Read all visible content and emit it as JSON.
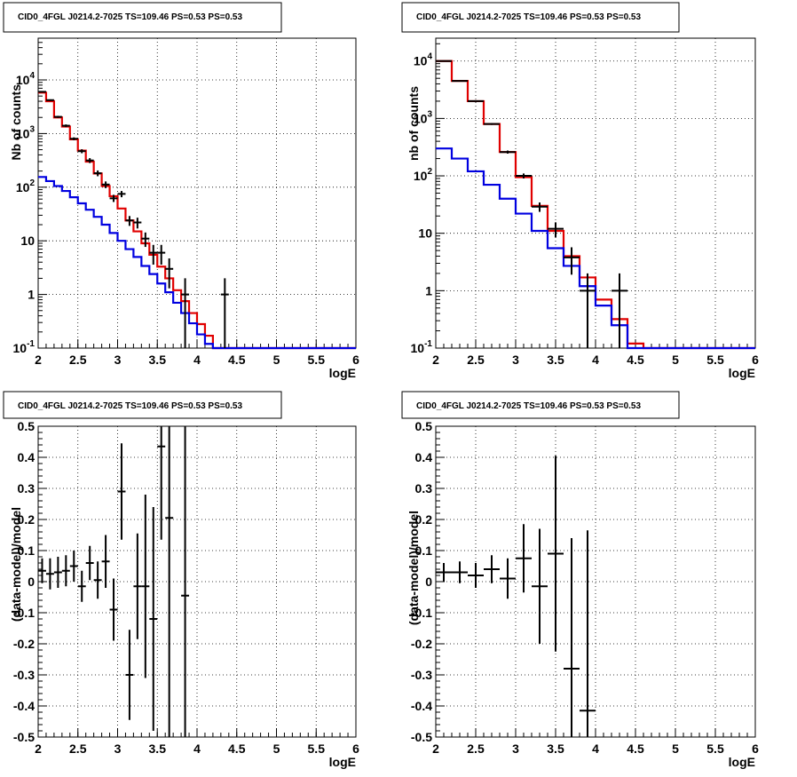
{
  "chart_data": [
    {
      "type": "line",
      "title": "CID0_4FGL J0214.2-7025 TS=109.46 PS=0.53 PS=0.53",
      "xlabel": "logE",
      "ylabel": "Nb of counts",
      "xlim": [
        2,
        6
      ],
      "ylim": [
        0.1,
        60000
      ],
      "yscale": "log",
      "grid": true,
      "x_ticks": [
        "2",
        "2.5",
        "3",
        "3.5",
        "4",
        "4.5",
        "5",
        "5.5",
        "6"
      ],
      "y_ticks": [
        {
          "v": 0.1,
          "base": "10",
          "exp": "-1"
        },
        {
          "v": 1,
          "base": "1",
          "exp": ""
        },
        {
          "v": 10,
          "base": "10",
          "exp": ""
        },
        {
          "v": 100,
          "base": "10",
          "exp": "2"
        },
        {
          "v": 1000,
          "base": "10",
          "exp": "3"
        },
        {
          "v": 10000,
          "base": "10",
          "exp": "4"
        }
      ],
      "bin_edges": [
        2.0,
        2.1,
        2.2,
        2.3,
        2.4,
        2.5,
        2.6,
        2.7,
        2.8,
        2.9,
        3.0,
        3.1,
        3.2,
        3.3,
        3.4,
        3.5,
        3.6,
        3.7,
        3.8,
        3.9,
        4.0,
        4.1,
        4.2,
        4.3,
        4.4,
        4.5,
        4.6,
        4.7,
        4.8,
        4.9,
        5.0,
        5.1,
        5.2,
        5.3,
        5.4,
        5.5,
        5.6,
        5.7,
        5.8,
        5.9,
        6.0
      ],
      "series": [
        {
          "color": "#e00000",
          "values": [
            5800,
            4000,
            2000,
            1350,
            780,
            480,
            300,
            180,
            105,
            68,
            40,
            24,
            15,
            9,
            5.5,
            3.3,
            2.0,
            1.2,
            0.75,
            0.45,
            0.28,
            0.17,
            0.1,
            0.1,
            0.1,
            0.1,
            0.1,
            0.1,
            0.1,
            0.1,
            0.1,
            0.1,
            0.1,
            0.1,
            0.1,
            0.1,
            0.1,
            0.1,
            0.1,
            0.1
          ]
        },
        {
          "color": "#0000e0",
          "values": [
            155,
            130,
            105,
            85,
            65,
            50,
            38,
            28,
            20,
            14,
            10,
            7,
            5,
            3.4,
            2.4,
            1.6,
            1.1,
            0.7,
            0.45,
            0.29,
            0.18,
            0.12,
            0.1,
            0.1,
            0.1,
            0.1,
            0.1,
            0.1,
            0.1,
            0.1,
            0.1,
            0.1,
            0.1,
            0.1,
            0.1,
            0.1,
            0.1,
            0.1,
            0.1,
            0.1
          ]
        }
      ],
      "data_points": [
        {
          "x": 2.05,
          "y": 6000,
          "ylo": 5850,
          "yhi": 6150
        },
        {
          "x": 2.15,
          "y": 4200,
          "ylo": 4070,
          "yhi": 4330
        },
        {
          "x": 2.25,
          "y": 2050,
          "ylo": 1960,
          "yhi": 2140
        },
        {
          "x": 2.35,
          "y": 1400,
          "ylo": 1320,
          "yhi": 1480
        },
        {
          "x": 2.45,
          "y": 800,
          "ylo": 750,
          "yhi": 850
        },
        {
          "x": 2.55,
          "y": 470,
          "ylo": 430,
          "yhi": 510
        },
        {
          "x": 2.65,
          "y": 315,
          "ylo": 282,
          "yhi": 348
        },
        {
          "x": 2.75,
          "y": 182,
          "ylo": 160,
          "yhi": 205
        },
        {
          "x": 2.85,
          "y": 112,
          "ylo": 96,
          "yhi": 128
        },
        {
          "x": 2.95,
          "y": 62,
          "ylo": 53,
          "yhi": 72
        },
        {
          "x": 3.05,
          "y": 75,
          "ylo": 65,
          "yhi": 85
        },
        {
          "x": 3.15,
          "y": 24,
          "ylo": 19,
          "yhi": 29
        },
        {
          "x": 3.25,
          "y": 22,
          "ylo": 17,
          "yhi": 27
        },
        {
          "x": 3.35,
          "y": 11,
          "ylo": 7.7,
          "yhi": 14.3
        },
        {
          "x": 3.45,
          "y": 6,
          "ylo": 3.6,
          "yhi": 8.4
        },
        {
          "x": 3.55,
          "y": 6,
          "ylo": 3.6,
          "yhi": 8.4
        },
        {
          "x": 3.65,
          "y": 3,
          "ylo": 1.3,
          "yhi": 4.7
        },
        {
          "x": 3.85,
          "y": 1,
          "ylo": 0.1,
          "yhi": 2.0
        },
        {
          "x": 4.35,
          "y": 1,
          "ylo": 0.1,
          "yhi": 2.0
        }
      ]
    },
    {
      "type": "line",
      "title": "CID0_4FGL J0214.2-7025 TS=109.46 PS=0.53 PS=0.53",
      "xlabel": "logE",
      "ylabel": "nb of counts",
      "xlim": [
        2,
        6
      ],
      "ylim": [
        0.1,
        25000
      ],
      "yscale": "log",
      "grid": true,
      "x_ticks": [
        "2",
        "2.5",
        "3",
        "3.5",
        "4",
        "4.5",
        "5",
        "5.5",
        "6"
      ],
      "y_ticks": [
        {
          "v": 0.1,
          "base": "10",
          "exp": "-1"
        },
        {
          "v": 1,
          "base": "1",
          "exp": ""
        },
        {
          "v": 10,
          "base": "10",
          "exp": ""
        },
        {
          "v": 100,
          "base": "10",
          "exp": "2"
        },
        {
          "v": 1000,
          "base": "10",
          "exp": "3"
        },
        {
          "v": 10000,
          "base": "10",
          "exp": "4"
        }
      ],
      "bin_edges": [
        2.0,
        2.2,
        2.4,
        2.6,
        2.8,
        3.0,
        3.2,
        3.4,
        3.6,
        3.8,
        4.0,
        4.2,
        4.4,
        4.6,
        4.8,
        5.0,
        5.2,
        5.4,
        5.6,
        5.8,
        6.0
      ],
      "series": [
        {
          "color": "#e00000",
          "values": [
            10000,
            4500,
            2000,
            800,
            260,
            95,
            30,
            11,
            4.0,
            1.7,
            0.7,
            0.32,
            0.12,
            0.1,
            0.1,
            0.1,
            0.1,
            0.1,
            0.1,
            0.1
          ]
        },
        {
          "color": "#0000e0",
          "values": [
            300,
            200,
            120,
            70,
            40,
            22,
            11,
            5.5,
            2.7,
            1.2,
            0.55,
            0.25,
            0.1,
            0.1,
            0.1,
            0.1,
            0.1,
            0.1,
            0.1,
            0.1
          ]
        }
      ],
      "data_points": [
        {
          "x": 2.1,
          "y": 10000,
          "ylo": 9900,
          "yhi": 10100
        },
        {
          "x": 2.3,
          "y": 4500,
          "ylo": 4430,
          "yhi": 4570
        },
        {
          "x": 2.5,
          "y": 2000,
          "ylo": 1955,
          "yhi": 2045
        },
        {
          "x": 2.7,
          "y": 800,
          "ylo": 772,
          "yhi": 828
        },
        {
          "x": 2.9,
          "y": 260,
          "ylo": 244,
          "yhi": 276
        },
        {
          "x": 3.1,
          "y": 100,
          "ylo": 90,
          "yhi": 110
        },
        {
          "x": 3.3,
          "y": 29,
          "ylo": 23.6,
          "yhi": 34.4
        },
        {
          "x": 3.5,
          "y": 12,
          "ylo": 8.5,
          "yhi": 15.5
        },
        {
          "x": 3.7,
          "y": 3.8,
          "ylo": 1.9,
          "yhi": 5.7
        },
        {
          "x": 3.9,
          "y": 1,
          "ylo": 0.1,
          "yhi": 2.0
        },
        {
          "x": 4.3,
          "y": 1,
          "ylo": 0.1,
          "yhi": 2.0
        }
      ]
    },
    {
      "type": "scatter",
      "title": "CID0_4FGL J0214.2-7025 TS=109.46 PS=0.53 PS=0.53",
      "xlabel": "logE",
      "ylabel": "(data-model)/model",
      "xlim": [
        2,
        6
      ],
      "ylim": [
        -0.5,
        0.5
      ],
      "grid": true,
      "x_ticks": [
        "2",
        "2.5",
        "3",
        "3.5",
        "4",
        "4.5",
        "5",
        "5.5",
        "6"
      ],
      "y_ticks": [
        "-0.5",
        "-0.4",
        "-0.3",
        "-0.2",
        "-0.1",
        "0",
        "0.1",
        "0.2",
        "0.3",
        "0.4",
        "0.5"
      ],
      "half_width": 0.05,
      "points": [
        {
          "x": 2.05,
          "y": 0.035,
          "err": 0.04
        },
        {
          "x": 2.15,
          "y": 0.025,
          "err": 0.05
        },
        {
          "x": 2.25,
          "y": 0.03,
          "err": 0.05
        },
        {
          "x": 2.35,
          "y": 0.035,
          "err": 0.05
        },
        {
          "x": 2.45,
          "y": 0.05,
          "err": 0.05
        },
        {
          "x": 2.55,
          "y": -0.015,
          "err": 0.05
        },
        {
          "x": 2.65,
          "y": 0.06,
          "err": 0.055
        },
        {
          "x": 2.75,
          "y": 0.005,
          "err": 0.06
        },
        {
          "x": 2.85,
          "y": 0.065,
          "err": 0.085
        },
        {
          "x": 2.95,
          "y": -0.09,
          "err": 0.1
        },
        {
          "x": 3.05,
          "y": 0.29,
          "err": 0.155
        },
        {
          "x": 3.15,
          "y": -0.3,
          "err": 0.145
        },
        {
          "x": 3.25,
          "y": -0.015,
          "err": 0.17
        },
        {
          "x": 3.35,
          "y": -0.015,
          "err": 0.295
        },
        {
          "x": 3.45,
          "y": -0.12,
          "err": 0.36
        },
        {
          "x": 3.55,
          "y": 0.435,
          "err": 0.3
        },
        {
          "x": 3.65,
          "y": 0.205,
          "err": 0.75
        },
        {
          "x": 3.85,
          "y": -0.045,
          "err": 1.0
        }
      ]
    },
    {
      "type": "scatter",
      "title": "CID0_4FGL J0214.2-7025 TS=109.46 PS=0.53 PS=0.53",
      "xlabel": "logE",
      "ylabel": "(data-model)/model",
      "xlim": [
        2,
        6
      ],
      "ylim": [
        -0.5,
        0.5
      ],
      "grid": true,
      "x_ticks": [
        "2",
        "2.5",
        "3",
        "3.5",
        "4",
        "4.5",
        "5",
        "5.5",
        "6"
      ],
      "y_ticks": [
        "-0.5",
        "-0.4",
        "-0.3",
        "-0.2",
        "-0.1",
        "0",
        "0.1",
        "0.2",
        "0.3",
        "0.4",
        "0.5"
      ],
      "half_width": 0.1,
      "points": [
        {
          "x": 2.1,
          "y": 0.03,
          "err": 0.03
        },
        {
          "x": 2.3,
          "y": 0.03,
          "err": 0.035
        },
        {
          "x": 2.5,
          "y": 0.02,
          "err": 0.04
        },
        {
          "x": 2.7,
          "y": 0.04,
          "err": 0.045
        },
        {
          "x": 2.9,
          "y": 0.01,
          "err": 0.065
        },
        {
          "x": 3.1,
          "y": 0.075,
          "err": 0.11
        },
        {
          "x": 3.3,
          "y": -0.015,
          "err": 0.185
        },
        {
          "x": 3.5,
          "y": 0.09,
          "err": 0.315
        },
        {
          "x": 3.7,
          "y": -0.28,
          "err": 0.42
        },
        {
          "x": 3.9,
          "y": -0.415,
          "err": 0.58
        }
      ]
    }
  ]
}
